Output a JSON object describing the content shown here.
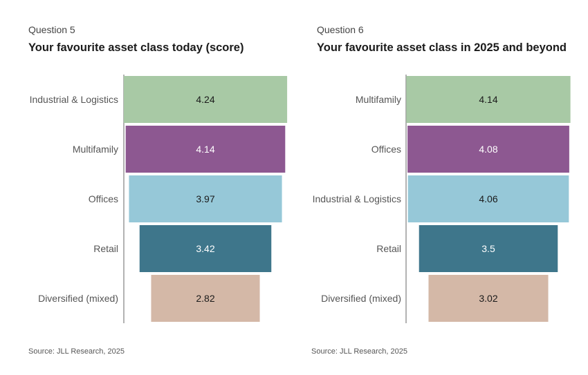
{
  "chart_data": [
    {
      "type": "bar",
      "subtitle": "Question 5",
      "title": "Your favourite asset class today (score)",
      "categories": [
        "Industrial & Logistics",
        "Multifamily",
        "Offices",
        "Retail",
        "Diversified (mixed)"
      ],
      "values": [
        4.24,
        4.14,
        3.97,
        3.42,
        2.82
      ],
      "value_labels": [
        "4.24",
        "4.14",
        "3.97",
        "3.42",
        "2.82"
      ],
      "colors": [
        "#a8c9a5",
        "#8d5891",
        "#96c8d8",
        "#3e768b",
        "#d4b8a7"
      ],
      "label_colors": [
        "#1a1a1a",
        "#ffffff",
        "#1a1a1a",
        "#ffffff",
        "#1a1a1a"
      ],
      "orientation": "horizontal-centered",
      "source": "Source: JLL Research, 2025"
    },
    {
      "type": "bar",
      "subtitle": "Question 6",
      "title": "Your favourite asset class in 2025 and beyond",
      "categories": [
        "Multifamily",
        "Offices",
        "Industrial & Logistics",
        "Retail",
        "Diversified (mixed)"
      ],
      "values": [
        4.14,
        4.08,
        4.06,
        3.5,
        3.02
      ],
      "value_labels": [
        "4.14",
        "4.08",
        "4.06",
        "3.5",
        "3.02"
      ],
      "colors": [
        "#a8c9a5",
        "#8d5891",
        "#96c8d8",
        "#3e768b",
        "#d4b8a7"
      ],
      "label_colors": [
        "#1a1a1a",
        "#ffffff",
        "#1a1a1a",
        "#ffffff",
        "#1a1a1a"
      ],
      "orientation": "horizontal-centered",
      "source": "Source: JLL Research, 2025"
    }
  ]
}
